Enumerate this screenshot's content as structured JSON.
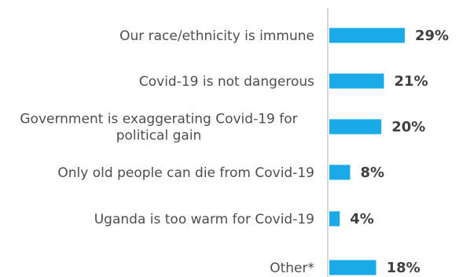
{
  "chart_data": {
    "type": "bar",
    "orientation": "horizontal",
    "categories": [
      [
        "Our race/ethnicity is immune"
      ],
      [
        "Covid-19 is not dangerous"
      ],
      [
        "Government is exaggerating Covid-19 for",
        "political gain"
      ],
      [
        "Only old people can die from Covid-19"
      ],
      [
        "Uganda is too warm for Covid-19"
      ],
      [
        "Other*"
      ]
    ],
    "values": [
      29,
      21,
      20,
      8,
      4,
      18
    ],
    "value_labels": [
      "29%",
      "21%",
      "20%",
      "8%",
      "4%",
      "18%"
    ],
    "unit": "%",
    "xlim": [
      0,
      29
    ],
    "grid": false,
    "legend": "none",
    "colors": {
      "bar": "#1aaae8",
      "axis": "#c8c8c8",
      "label": "#4d4d4d",
      "value": "#3f3f3f"
    }
  }
}
